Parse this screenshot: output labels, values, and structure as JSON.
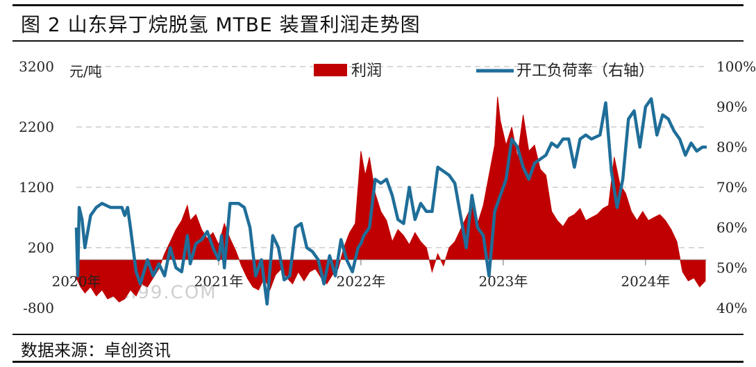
{
  "header": {
    "title": "图 2  山东异丁烷脱氢 MTBE 装置利润走势图"
  },
  "footer": {
    "source": "数据来源：卓创资讯"
  },
  "watermark": "SCI99.COM",
  "chart_data": {
    "type": "area+line",
    "left_axis": {
      "unit": "元/吨",
      "ticks": [
        3200,
        2200,
        1200,
        200,
        -800
      ],
      "range": [
        -800,
        3200
      ]
    },
    "right_axis": {
      "ticks": [
        "100%",
        "90%",
        "80%",
        "70%",
        "60%",
        "50%",
        "40%"
      ],
      "range": [
        40,
        100
      ]
    },
    "x_axis": {
      "ticks": [
        "2020年",
        "2021年",
        "2022年",
        "2023年",
        "2024年"
      ],
      "range": [
        2020.0,
        2024.43
      ]
    },
    "legend": {
      "position": "top",
      "entries": [
        "利润",
        "开工负荷率（右轴）"
      ]
    },
    "colors": {
      "profit": "#c00000",
      "load": "#1f6e99",
      "grid": "#cccccc"
    },
    "series": [
      {
        "name": "利润",
        "axis": "left",
        "points": [
          [
            2020.0,
            -300
          ],
          [
            2020.03,
            -450
          ],
          [
            2020.06,
            -550
          ],
          [
            2020.1,
            -450
          ],
          [
            2020.14,
            -600
          ],
          [
            2020.18,
            -500
          ],
          [
            2020.22,
            -650
          ],
          [
            2020.26,
            -600
          ],
          [
            2020.3,
            -700
          ],
          [
            2020.34,
            -650
          ],
          [
            2020.38,
            -500
          ],
          [
            2020.42,
            -600
          ],
          [
            2020.46,
            -400
          ],
          [
            2020.5,
            -450
          ],
          [
            2020.54,
            -300
          ],
          [
            2020.58,
            -150
          ],
          [
            2020.62,
            100
          ],
          [
            2020.66,
            300
          ],
          [
            2020.7,
            500
          ],
          [
            2020.74,
            650
          ],
          [
            2020.78,
            900
          ],
          [
            2020.8,
            650
          ],
          [
            2020.84,
            750
          ],
          [
            2020.88,
            500
          ],
          [
            2020.92,
            350
          ],
          [
            2020.96,
            450
          ],
          [
            2021.0,
            250
          ],
          [
            2021.04,
            600
          ],
          [
            2021.08,
            350
          ],
          [
            2021.12,
            150
          ],
          [
            2021.16,
            -100
          ],
          [
            2021.2,
            -300
          ],
          [
            2021.24,
            -450
          ],
          [
            2021.28,
            -500
          ],
          [
            2021.32,
            -300
          ],
          [
            2021.36,
            -500
          ],
          [
            2021.4,
            -250
          ],
          [
            2021.44,
            -150
          ],
          [
            2021.48,
            -300
          ],
          [
            2021.52,
            -400
          ],
          [
            2021.56,
            -200
          ],
          [
            2021.6,
            -350
          ],
          [
            2021.64,
            -200
          ],
          [
            2021.68,
            -150
          ],
          [
            2021.72,
            -300
          ],
          [
            2021.76,
            -400
          ],
          [
            2021.8,
            -250
          ],
          [
            2021.84,
            -150
          ],
          [
            2021.88,
            200
          ],
          [
            2021.92,
            450
          ],
          [
            2021.96,
            600
          ],
          [
            2022.0,
            1800
          ],
          [
            2022.03,
            1400
          ],
          [
            2022.06,
            1700
          ],
          [
            2022.1,
            1100
          ],
          [
            2022.14,
            800
          ],
          [
            2022.18,
            650
          ],
          [
            2022.22,
            300
          ],
          [
            2022.26,
            500
          ],
          [
            2022.3,
            400
          ],
          [
            2022.34,
            250
          ],
          [
            2022.38,
            450
          ],
          [
            2022.42,
            300
          ],
          [
            2022.46,
            200
          ],
          [
            2022.5,
            -200
          ],
          [
            2022.54,
            100
          ],
          [
            2022.58,
            -100
          ],
          [
            2022.62,
            200
          ],
          [
            2022.66,
            300
          ],
          [
            2022.7,
            500
          ],
          [
            2022.74,
            700
          ],
          [
            2022.78,
            900
          ],
          [
            2022.82,
            600
          ],
          [
            2022.86,
            900
          ],
          [
            2022.9,
            1400
          ],
          [
            2022.94,
            1900
          ],
          [
            2022.96,
            2700
          ],
          [
            2022.98,
            2300
          ],
          [
            2023.02,
            1900
          ],
          [
            2023.06,
            2200
          ],
          [
            2023.1,
            1700
          ],
          [
            2023.14,
            2400
          ],
          [
            2023.18,
            1800
          ],
          [
            2023.22,
            1900
          ],
          [
            2023.26,
            1500
          ],
          [
            2023.3,
            1400
          ],
          [
            2023.34,
            800
          ],
          [
            2023.38,
            650
          ],
          [
            2023.42,
            550
          ],
          [
            2023.46,
            700
          ],
          [
            2023.5,
            750
          ],
          [
            2023.54,
            850
          ],
          [
            2023.58,
            650
          ],
          [
            2023.62,
            700
          ],
          [
            2023.66,
            750
          ],
          [
            2023.7,
            850
          ],
          [
            2023.74,
            900
          ],
          [
            2023.78,
            1700
          ],
          [
            2023.82,
            1250
          ],
          [
            2023.86,
            1100
          ],
          [
            2023.9,
            800
          ],
          [
            2023.94,
            650
          ],
          [
            2023.98,
            800
          ],
          [
            2024.02,
            650
          ],
          [
            2024.06,
            700
          ],
          [
            2024.1,
            750
          ],
          [
            2024.14,
            650
          ],
          [
            2024.18,
            500
          ],
          [
            2024.22,
            300
          ],
          [
            2024.26,
            -200
          ],
          [
            2024.3,
            -350
          ],
          [
            2024.34,
            -300
          ],
          [
            2024.38,
            -450
          ],
          [
            2024.42,
            -350
          ]
        ]
      },
      {
        "name": "开工负荷率（右轴）",
        "axis": "right",
        "points": [
          [
            2020.0,
            60
          ],
          [
            2020.01,
            48
          ],
          [
            2020.02,
            65
          ],
          [
            2020.04,
            62
          ],
          [
            2020.06,
            55
          ],
          [
            2020.08,
            59
          ],
          [
            2020.1,
            63
          ],
          [
            2020.14,
            65
          ],
          [
            2020.18,
            66
          ],
          [
            2020.24,
            65
          ],
          [
            2020.32,
            65
          ],
          [
            2020.34,
            63
          ],
          [
            2020.36,
            65
          ],
          [
            2020.38,
            60
          ],
          [
            2020.42,
            49
          ],
          [
            2020.45,
            46
          ],
          [
            2020.5,
            52
          ],
          [
            2020.54,
            48
          ],
          [
            2020.58,
            51
          ],
          [
            2020.62,
            48
          ],
          [
            2020.66,
            55
          ],
          [
            2020.7,
            50
          ],
          [
            2020.74,
            49
          ],
          [
            2020.78,
            58
          ],
          [
            2020.8,
            51
          ],
          [
            2020.84,
            56
          ],
          [
            2020.88,
            57
          ],
          [
            2020.92,
            59
          ],
          [
            2020.96,
            55
          ],
          [
            2021.0,
            52
          ],
          [
            2021.02,
            58
          ],
          [
            2021.04,
            50
          ],
          [
            2021.08,
            66
          ],
          [
            2021.14,
            66
          ],
          [
            2021.18,
            65
          ],
          [
            2021.22,
            60
          ],
          [
            2021.26,
            48
          ],
          [
            2021.3,
            52
          ],
          [
            2021.34,
            41
          ],
          [
            2021.38,
            58
          ],
          [
            2021.42,
            55
          ],
          [
            2021.46,
            47
          ],
          [
            2021.5,
            48
          ],
          [
            2021.54,
            60
          ],
          [
            2021.58,
            61
          ],
          [
            2021.62,
            55
          ],
          [
            2021.66,
            54
          ],
          [
            2021.7,
            52
          ],
          [
            2021.74,
            46
          ],
          [
            2021.78,
            53
          ],
          [
            2021.82,
            48
          ],
          [
            2021.86,
            57
          ],
          [
            2021.9,
            52
          ],
          [
            2021.94,
            49
          ],
          [
            2021.98,
            55
          ],
          [
            2022.0,
            56
          ],
          [
            2022.02,
            58
          ],
          [
            2022.06,
            60
          ],
          [
            2022.1,
            72
          ],
          [
            2022.14,
            71
          ],
          [
            2022.18,
            72
          ],
          [
            2022.22,
            68
          ],
          [
            2022.26,
            62
          ],
          [
            2022.3,
            61
          ],
          [
            2022.34,
            70
          ],
          [
            2022.38,
            62
          ],
          [
            2022.42,
            66
          ],
          [
            2022.46,
            64
          ],
          [
            2022.5,
            64
          ],
          [
            2022.54,
            75
          ],
          [
            2022.58,
            74
          ],
          [
            2022.62,
            73
          ],
          [
            2022.66,
            71
          ],
          [
            2022.7,
            63
          ],
          [
            2022.74,
            55
          ],
          [
            2022.78,
            68
          ],
          [
            2022.82,
            60
          ],
          [
            2022.86,
            58
          ],
          [
            2022.9,
            48
          ],
          [
            2022.94,
            64
          ],
          [
            2022.98,
            68
          ],
          [
            2023.02,
            72
          ],
          [
            2023.06,
            82
          ],
          [
            2023.1,
            80
          ],
          [
            2023.14,
            75
          ],
          [
            2023.18,
            72
          ],
          [
            2023.22,
            76
          ],
          [
            2023.26,
            77
          ],
          [
            2023.3,
            78
          ],
          [
            2023.34,
            81
          ],
          [
            2023.38,
            80
          ],
          [
            2023.42,
            82
          ],
          [
            2023.46,
            82
          ],
          [
            2023.5,
            75
          ],
          [
            2023.54,
            82
          ],
          [
            2023.58,
            83
          ],
          [
            2023.62,
            82
          ],
          [
            2023.68,
            83
          ],
          [
            2023.72,
            91
          ],
          [
            2023.76,
            74
          ],
          [
            2023.8,
            65
          ],
          [
            2023.84,
            72
          ],
          [
            2023.88,
            87
          ],
          [
            2023.92,
            89
          ],
          [
            2023.96,
            80
          ],
          [
            2024.0,
            90
          ],
          [
            2024.04,
            92
          ],
          [
            2024.08,
            83
          ],
          [
            2024.12,
            88
          ],
          [
            2024.16,
            87
          ],
          [
            2024.2,
            84
          ],
          [
            2024.24,
            82
          ],
          [
            2024.28,
            78
          ],
          [
            2024.32,
            81
          ],
          [
            2024.36,
            79
          ],
          [
            2024.4,
            80
          ],
          [
            2024.43,
            80
          ]
        ]
      }
    ]
  }
}
